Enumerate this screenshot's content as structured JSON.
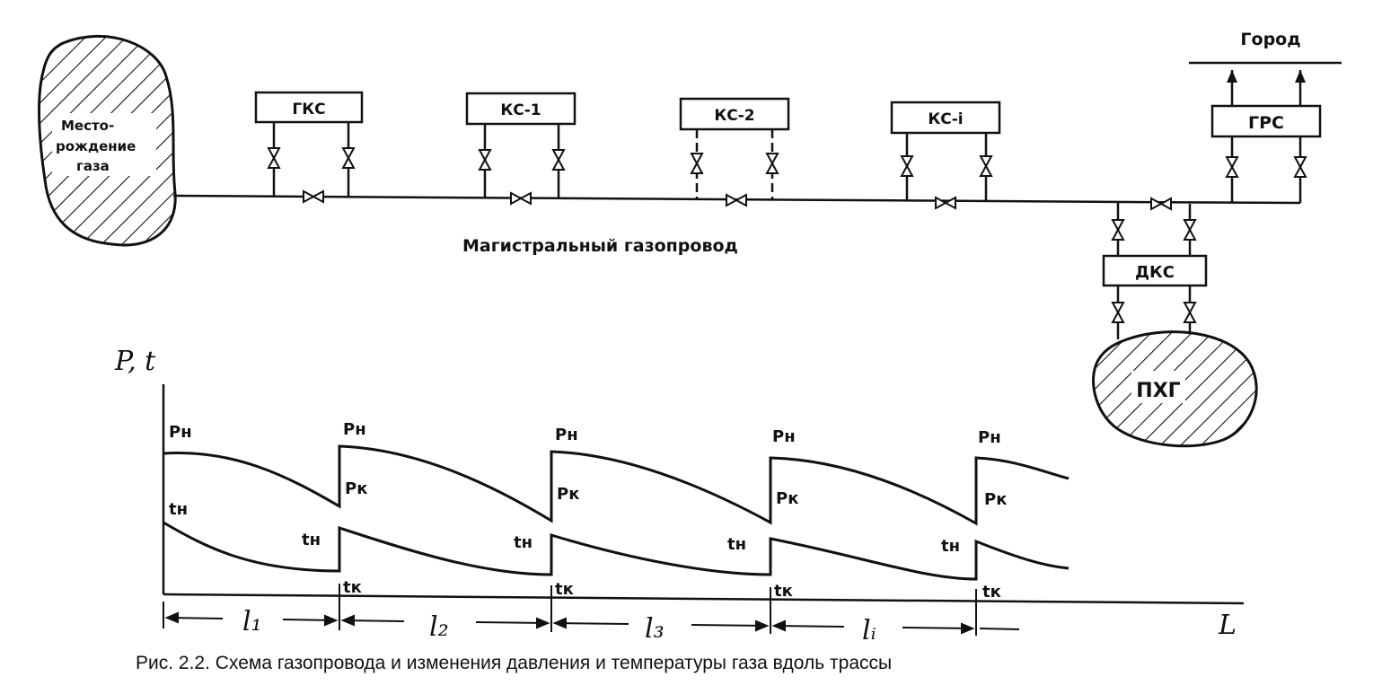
{
  "source_field": {
    "lines": [
      "Место-",
      "рождение",
      "газа"
    ]
  },
  "stations": [
    "ГКС",
    "КС-1",
    "КС-2",
    "КС-i"
  ],
  "grs": "ГРС",
  "city": "Город",
  "dks": "ДКС",
  "storage": "ПХГ",
  "pipeline_label": "Магистральный газопровод",
  "graph": {
    "y_axis_label": "P, t",
    "x_axis_label": "L",
    "p_start": "Pн",
    "p_end": "Pк",
    "t_start": "tн",
    "t_end": "tк",
    "segments": [
      "l₁",
      "l₂",
      "l₃",
      "lᵢ"
    ]
  },
  "caption": "Рис. 2.2. Схема газопровода и изменения давления и температуры газа вдоль трассы"
}
